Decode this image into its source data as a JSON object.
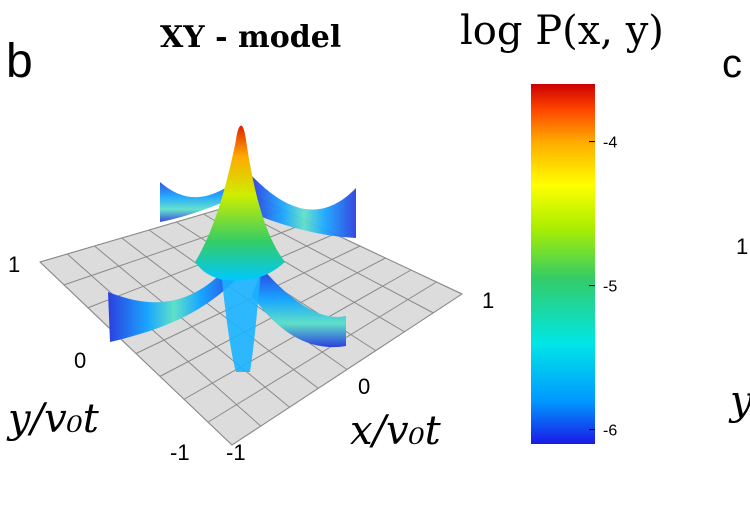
{
  "panel_labels": {
    "current": "b",
    "next": "c"
  },
  "chart_data": {
    "type": "surface-3d",
    "title": "XY - model",
    "xlabel": "x/v₀t",
    "ylabel": "y/v₀t",
    "zlabel": "",
    "x_ticks": [
      "-1",
      "0",
      "1"
    ],
    "y_ticks": [
      "-1",
      "0",
      "1"
    ],
    "xlim": [
      -1,
      1
    ],
    "ylim": [
      -1,
      1
    ],
    "colorbar": {
      "label": "log P(x, y)",
      "ticks": [
        "-4",
        "-5",
        "-6"
      ],
      "tick_values": [
        -4,
        -5,
        -6
      ],
      "range": [
        -6.1,
        -3.6
      ],
      "colormap": [
        "#1a1ae6",
        "#0099ff",
        "#00e6e6",
        "#33cc66",
        "#aaee00",
        "#ffff00",
        "#ffaa00",
        "#ff4400",
        "#cc0000"
      ]
    },
    "peak_log_value": -3.6,
    "floor_log_value": -6.0,
    "grid": true,
    "floor_color": "#dcdcdc",
    "description_of_surface": "sharp central peak at (0,0) with four ridges along x and y axes"
  },
  "next_panel_partial": {
    "tick": "1",
    "ylabel_fragment": "y"
  }
}
